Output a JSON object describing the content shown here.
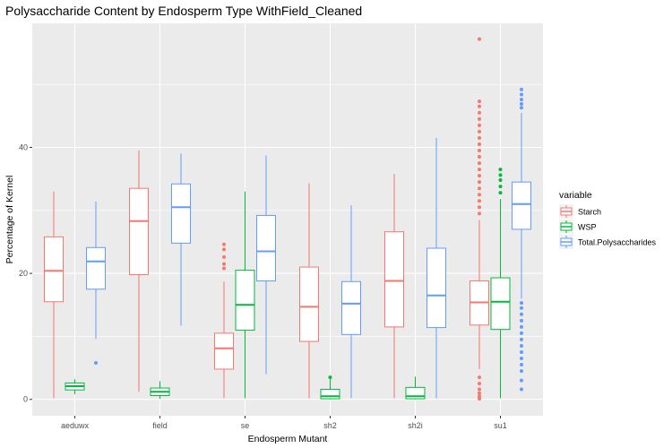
{
  "chart_data": {
    "type": "boxplot",
    "title": "Polysaccharide Content by Endosperm Type WithField_Cleaned",
    "xlabel": "Endosperm Mutant",
    "ylabel": "Percentage of Kernel",
    "categories": [
      "aeduwx",
      "field",
      "se",
      "sh2",
      "sh2i",
      "su1"
    ],
    "yticks": [
      0,
      20,
      40
    ],
    "ylim": [
      -2.6,
      59.7
    ],
    "grid": true,
    "legend": {
      "title": "variable",
      "position": "right",
      "entries": [
        {
          "name": "Starch",
          "color": "#F8766D"
        },
        {
          "name": "WSP",
          "color": "#00BA38"
        },
        {
          "name": "Total.Polysaccharides",
          "color": "#619CFF"
        }
      ]
    },
    "series": [
      {
        "name": "Starch",
        "color": "#F8766D",
        "boxes": [
          {
            "category": "aeduwx",
            "min": 0.2,
            "q1": 15.5,
            "median": 20.4,
            "q3": 25.8,
            "max": 33.0,
            "outliers": []
          },
          {
            "category": "field",
            "min": 1.2,
            "q1": 19.8,
            "median": 28.3,
            "q3": 33.5,
            "max": 39.5,
            "outliers": []
          },
          {
            "category": "se",
            "min": 0.2,
            "q1": 4.8,
            "median": 8.1,
            "q3": 10.5,
            "max": 18.7,
            "outliers": [
              20.8,
              21.5,
              22.6,
              23.8,
              24.6
            ]
          },
          {
            "category": "sh2",
            "min": 0.2,
            "q1": 9.2,
            "median": 14.7,
            "q3": 21.0,
            "max": 34.3,
            "outliers": []
          },
          {
            "category": "sh2i",
            "min": 0.2,
            "q1": 11.5,
            "median": 18.8,
            "q3": 26.6,
            "max": 35.8,
            "outliers": []
          },
          {
            "category": "su1",
            "min": 4.8,
            "q1": 11.8,
            "median": 15.4,
            "q3": 18.8,
            "max": 28.5,
            "outliers": [
              0.1,
              0.5,
              1.0,
              1.6,
              2.5,
              3.5,
              29.5,
              30.5,
              31.5,
              32.5,
              33.5,
              34.5,
              35.5,
              36.5,
              37.5,
              38.5,
              39.5,
              40.5,
              41.5,
              42.5,
              43.5,
              44.5,
              45.5,
              46.5,
              47.3,
              57.2
            ]
          }
        ]
      },
      {
        "name": "WSP",
        "color": "#00BA38",
        "boxes": [
          {
            "category": "aeduwx",
            "min": 0.8,
            "q1": 1.5,
            "median": 2.1,
            "q3": 2.6,
            "max": 3.2,
            "outliers": []
          },
          {
            "category": "field",
            "min": 0.1,
            "q1": 0.6,
            "median": 1.2,
            "q3": 1.8,
            "max": 2.9,
            "outliers": []
          },
          {
            "category": "se",
            "min": 0.2,
            "q1": 11.0,
            "median": 15.0,
            "q3": 20.5,
            "max": 33.0,
            "outliers": []
          },
          {
            "category": "sh2",
            "min": 0.0,
            "q1": 0.1,
            "median": 0.5,
            "q3": 1.6,
            "max": 3.2,
            "outliers": [
              3.5
            ]
          },
          {
            "category": "sh2i",
            "min": 0.0,
            "q1": 0.1,
            "median": 0.5,
            "q3": 1.9,
            "max": 3.6,
            "outliers": []
          },
          {
            "category": "su1",
            "min": 0.2,
            "q1": 11.1,
            "median": 15.5,
            "q3": 19.3,
            "max": 31.8,
            "outliers": [
              32.8,
              33.8,
              34.8,
              35.6,
              36.5
            ]
          }
        ]
      },
      {
        "name": "Total.Polysaccharides",
        "color": "#619CFF",
        "boxes": [
          {
            "category": "aeduwx",
            "min": 9.6,
            "q1": 17.5,
            "median": 21.9,
            "q3": 24.1,
            "max": 31.4,
            "outliers": [
              5.8
            ]
          },
          {
            "category": "field",
            "min": 11.7,
            "q1": 24.8,
            "median": 30.5,
            "q3": 34.2,
            "max": 39.0,
            "outliers": []
          },
          {
            "category": "se",
            "min": 4.0,
            "q1": 18.8,
            "median": 23.5,
            "q3": 29.2,
            "max": 38.7,
            "outliers": []
          },
          {
            "category": "sh2",
            "min": 0.2,
            "q1": 10.3,
            "median": 15.2,
            "q3": 18.7,
            "max": 30.8,
            "outliers": []
          },
          {
            "category": "sh2i",
            "min": 0.2,
            "q1": 11.4,
            "median": 16.5,
            "q3": 24.0,
            "max": 41.5,
            "outliers": []
          },
          {
            "category": "su1",
            "min": 16.0,
            "q1": 27.0,
            "median": 31.0,
            "q3": 34.5,
            "max": 45.5,
            "outliers": [
              1.6,
              3.0,
              4.5,
              5.5,
              6.5,
              7.5,
              8.5,
              9.5,
              10.5,
              11.5,
              12.5,
              13.5,
              14.5,
              15.3,
              46.3,
              46.9,
              47.6,
              48.4,
              49.2
            ]
          }
        ]
      }
    ]
  }
}
